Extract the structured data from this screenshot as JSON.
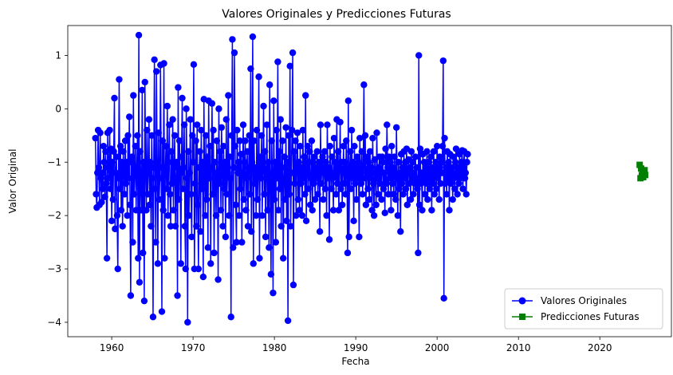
{
  "chart_data": {
    "type": "line",
    "title": "Valores Originales y Predicciones Futuras",
    "xlabel": "Fecha",
    "ylabel": "Valor Original",
    "xlim": [
      1954.6,
      2028.8
    ],
    "ylim": [
      -4.27,
      1.56
    ],
    "xticks": [
      1960,
      1970,
      1980,
      1990,
      2000,
      2010,
      2020
    ],
    "yticks": [
      -4,
      -3,
      -2,
      -1,
      0,
      1
    ],
    "legend_position": "lower-right",
    "grid": false,
    "series": [
      {
        "name": "Valores Originales",
        "color": "#0000ff",
        "marker": "circle",
        "x_start": 1958.0,
        "x_step": 0.0833333,
        "values": [
          -0.55,
          -1.6,
          -1.85,
          -1.2,
          -0.4,
          -1.1,
          -1.8,
          -0.45,
          -1.3,
          -1.75,
          -1.2,
          -1.5,
          -0.7,
          -1.0,
          -1.65,
          -0.8,
          -1.4,
          -2.8,
          -0.45,
          -1.1,
          -1.3,
          -0.4,
          -1.5,
          -0.75,
          -2.1,
          -1.0,
          -1.7,
          -0.8,
          0.2,
          -2.25,
          -1.2,
          -0.9,
          -2.0,
          -3.0,
          -1.3,
          0.55,
          -1.5,
          -0.7,
          -1.9,
          -1.0,
          -2.2,
          -0.8,
          -1.1,
          -1.6,
          -0.6,
          -1.4,
          -1.0,
          -2.0,
          -0.5,
          -1.3,
          -0.15,
          -1.8,
          -3.5,
          -1.0,
          -0.9,
          -2.5,
          0.25,
          -1.6,
          -1.2,
          -0.7,
          -1.9,
          -1.1,
          -0.5,
          -2.8,
          1.38,
          -3.25,
          -0.8,
          -1.4,
          -1.9,
          0.35,
          -2.7,
          -1.0,
          -3.6,
          0.5,
          -1.1,
          -1.9,
          -0.4,
          -1.6,
          -1.2,
          -0.2,
          -1.8,
          -1.0,
          -2.2,
          -0.5,
          -1.3,
          -3.9,
          -1.1,
          0.92,
          -1.5,
          -2.5,
          0.7,
          -1.0,
          -2.9,
          -0.45,
          -1.7,
          -1.3,
          0.82,
          -1.1,
          -3.8,
          -0.6,
          -1.9,
          0.85,
          -2.8,
          -1.2,
          -0.7,
          -1.5,
          0.05,
          -2.0,
          -1.0,
          -0.3,
          -1.6,
          -2.2,
          -0.8,
          -1.4,
          -0.2,
          -1.9,
          -1.1,
          -0.5,
          -2.2,
          -1.3,
          -1.0,
          -3.5,
          0.4,
          -1.7,
          -0.6,
          -1.2,
          -2.9,
          -0.9,
          0.2,
          -1.5,
          -1.1,
          -0.3,
          -2.2,
          -3.0,
          0.0,
          -1.3,
          -4.0,
          -0.8,
          -2.0,
          -1.2,
          -0.2,
          -1.6,
          -2.4,
          -0.5,
          -1.0,
          0.83,
          -3.0,
          -1.4,
          -0.6,
          -2.2,
          -0.3,
          -1.8,
          -3.0,
          -1.1,
          -0.8,
          -2.3,
          -0.4,
          -1.5,
          -1.0,
          -3.15,
          0.18,
          -1.2,
          -2.0,
          -0.5,
          -1.7,
          -0.9,
          -2.6,
          0.15,
          -1.3,
          -0.7,
          -2.9,
          -1.1,
          0.1,
          -1.6,
          -0.4,
          -2.7,
          -1.0,
          -1.3,
          -2.0,
          -0.6,
          -1.2,
          -3.2,
          0.0,
          -1.4,
          -0.8,
          -1.9,
          -0.35,
          -1.1,
          -2.2,
          -0.7,
          -1.5,
          -1.0,
          -2.4,
          -0.2,
          -1.6,
          -1.2,
          0.25,
          -2.0,
          -0.9,
          -1.3,
          -3.9,
          -0.5,
          1.3,
          -2.6,
          -1.1,
          1.05,
          -0.7,
          -1.8,
          -2.5,
          -0.4,
          -1.2,
          -1.0,
          -2.0,
          -0.6,
          -1.5,
          -0.85,
          -2.5,
          -1.2,
          -0.3,
          -1.7,
          -1.0,
          -0.6,
          -1.9,
          -1.3,
          -0.8,
          -2.2,
          -1.1,
          -0.5,
          -1.6,
          0.75,
          -2.3,
          -1.0,
          1.35,
          -2.9,
          -0.6,
          -1.4,
          -1.1,
          -2.0,
          -0.4,
          -1.7,
          -1.2,
          0.6,
          -2.8,
          -0.9,
          -1.3,
          -0.5,
          -2.0,
          -1.1,
          0.05,
          -1.6,
          -0.8,
          -2.4,
          -1.2,
          -0.3,
          -1.9,
          -1.0,
          -2.6,
          0.45,
          -1.4,
          -3.1,
          -0.6,
          -1.2,
          -3.45,
          0.15,
          -1.7,
          -1.0,
          -2.5,
          -0.4,
          -1.3,
          0.88,
          -1.9,
          -0.8,
          -1.5,
          -0.2,
          -2.2,
          -1.1,
          -0.6,
          -2.8,
          -1.3,
          -0.9,
          -1.7,
          -0.35,
          -2.1,
          -1.0,
          -3.97,
          -0.5,
          -1.6,
          0.8,
          -2.2,
          -1.2,
          -0.4,
          1.05,
          -3.3,
          -0.8,
          -1.4,
          -0.6,
          -2.0,
          -1.1,
          -0.45,
          -1.7,
          -1.0,
          -1.9,
          -0.7,
          -1.4,
          -1.1,
          -2.0,
          -0.4,
          -1.3,
          -0.9,
          -1.6,
          0.25,
          -2.1,
          -1.2,
          -0.7,
          -1.5,
          -1.0,
          -0.8,
          -1.8,
          -1.3,
          -0.6,
          -1.9,
          -1.0,
          -1.4,
          -0.9,
          -1.7,
          -1.1,
          -1.3,
          -0.8,
          -1.6,
          -1.2,
          -1.0,
          -2.3,
          -0.3,
          -1.4,
          -1.1,
          -0.9,
          -1.7,
          -1.2,
          -0.8,
          -1.5,
          -1.0,
          -2.0,
          -0.3,
          -1.3,
          -1.1,
          -2.45,
          -0.7,
          -1.2,
          -1.5,
          -0.9,
          -1.3,
          -1.9,
          -0.55,
          -1.2,
          -1.0,
          -1.6,
          -0.2,
          -1.4,
          -0.8,
          -1.9,
          -1.1,
          -0.25,
          -1.5,
          -1.0,
          -1.8,
          -1.2,
          -0.7,
          -1.4,
          -1.0,
          -1.6,
          -0.6,
          -1.2,
          -2.7,
          0.15,
          -2.4,
          -1.1,
          -0.8,
          -1.5,
          -0.4,
          -1.3,
          -1.0,
          -2.1,
          -0.7,
          -1.4,
          -1.1,
          -1.7,
          -0.9,
          -1.3,
          -1.0,
          -2.4,
          -0.55,
          -1.2,
          -1.4,
          -0.8,
          -1.6,
          -1.1,
          0.45,
          -1.3,
          -0.5,
          -1.8,
          -1.2,
          -0.9,
          -1.5,
          -1.0,
          -1.7,
          -0.8,
          -1.3,
          -1.1,
          -1.9,
          -0.55,
          -1.4,
          -2.0,
          -0.95,
          -1.2,
          -1.8,
          -0.45,
          -1.3,
          -1.6,
          -1.1,
          -0.9,
          -1.4,
          -1.2,
          -1.7,
          -0.9,
          -1.0,
          -1.5,
          -1.2,
          -1.95,
          -0.75,
          -1.4,
          -0.3,
          -1.1,
          -1.6,
          -0.9,
          -1.3,
          -1.0,
          -1.9,
          -0.7,
          -1.4,
          -1.1,
          -1.6,
          -0.9,
          -1.2,
          -1.7,
          -0.35,
          -1.3,
          -2.0,
          -1.0,
          -1.5,
          -1.2,
          -2.3,
          -0.85,
          -1.4,
          -1.1,
          -1.6,
          -0.8,
          -1.3,
          -1.0,
          -1.5,
          -0.75,
          -1.8,
          -1.2,
          -0.95,
          -1.4,
          -1.1,
          -1.7,
          -0.8,
          -1.3,
          -1.0,
          -1.6,
          -1.2,
          -1.4,
          -0.9,
          -1.3,
          -1.1,
          -1.5,
          -2.7,
          1.0,
          -1.8,
          -0.75,
          -1.4,
          -1.2,
          -1.9,
          -0.85,
          -1.3,
          -1.0,
          -1.6,
          -1.1,
          -1.4,
          -0.8,
          -1.7,
          -1.2,
          -1.0,
          -1.5,
          -1.3,
          -0.9,
          -1.9,
          -1.1,
          -1.4,
          -0.8,
          -1.6,
          -1.2,
          -1.0,
          -1.5,
          -0.7,
          -1.3,
          -1.1,
          -1.7,
          -0.9,
          -1.4,
          -1.0,
          -1.2,
          -0.7,
          0.9,
          -3.55,
          -0.55,
          -1.4,
          -1.1,
          -1.6,
          -0.8,
          -1.3,
          -1.0,
          -1.9,
          -0.85,
          -1.4,
          -1.2,
          -1.1,
          -1.7,
          -0.9,
          -1.3,
          -1.5,
          -1.0,
          -0.75,
          -1.2,
          -1.6,
          -1.1,
          -1.4,
          -0.85,
          -1.3,
          -1.2,
          -1.0,
          -0.78,
          -1.5,
          -1.1,
          -0.8,
          -1.3,
          -1.2,
          -1.6,
          -1.0,
          -0.85
        ]
      },
      {
        "name": "Predicciones Futuras",
        "color": "#008000",
        "marker": "square",
        "x": [
          2024.9,
          2025.0,
          2025.08,
          2025.17,
          2025.25,
          2025.33,
          2025.42,
          2025.5,
          2025.58
        ],
        "values": [
          -1.05,
          -1.3,
          -1.12,
          -1.25,
          -1.18,
          -1.28,
          -1.22,
          -1.15,
          -1.24
        ]
      }
    ]
  }
}
